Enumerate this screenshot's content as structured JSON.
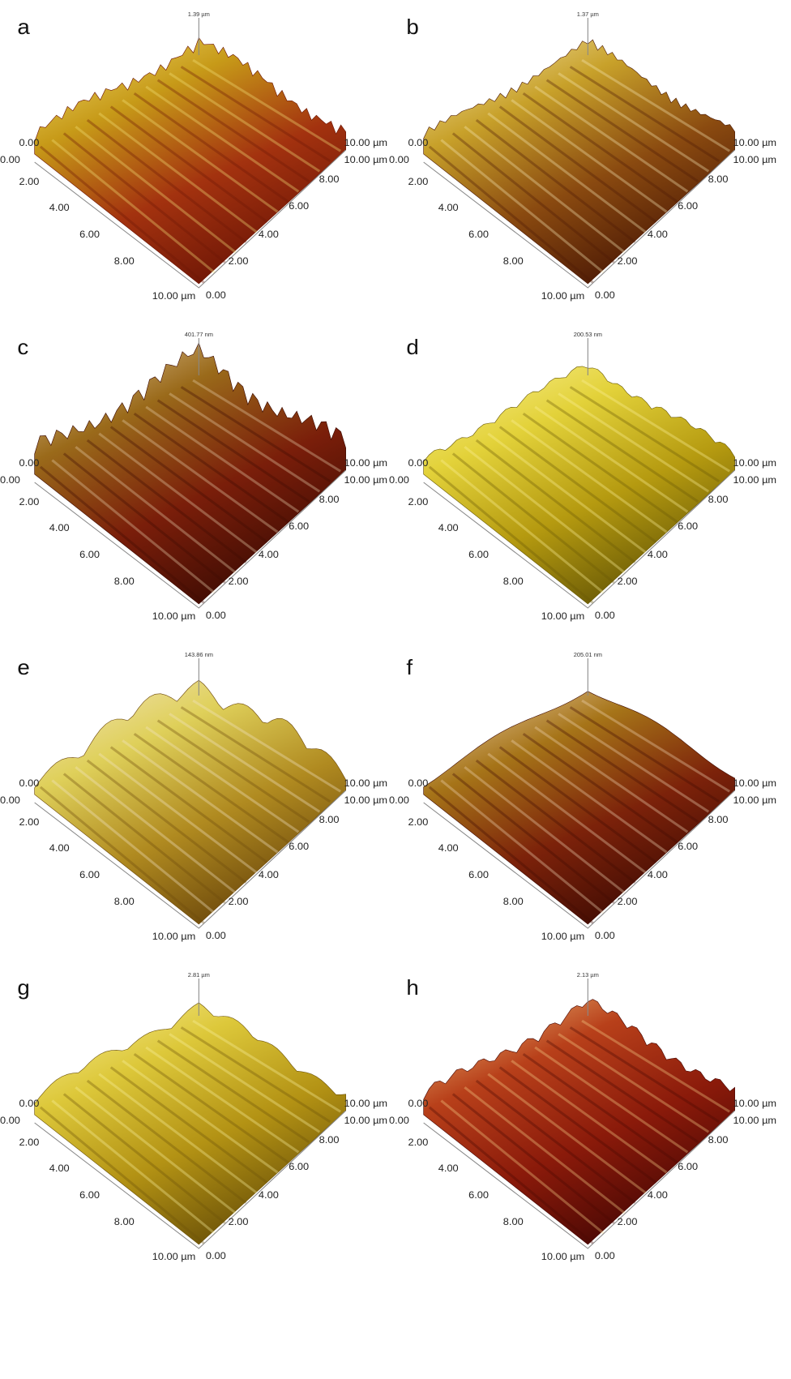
{
  "panels": [
    {
      "label": "a",
      "z_max": "1.39 µm",
      "left_ticks": [
        "0.00",
        "2.00",
        "4.00",
        "6.00",
        "8.00",
        "10.00 µm"
      ],
      "right_ticks": [
        "0.00",
        "2.00",
        "4.00",
        "6.00",
        "8.00",
        "10.00 µm"
      ],
      "corner_left": "0.00",
      "corner_right": "10.00 µm"
    },
    {
      "label": "b",
      "z_max": "1.37 µm",
      "left_ticks": [
        "0.00",
        "2.00",
        "4.00",
        "6.00",
        "8.00",
        "10.00 µm"
      ],
      "right_ticks": [
        "0.00",
        "2.00",
        "4.00",
        "6.00",
        "8.00",
        "10.00 µm"
      ],
      "corner_left": "0.00",
      "corner_right": "10.00 µm"
    },
    {
      "label": "c",
      "z_max": "401.77 nm",
      "left_ticks": [
        "0.00",
        "2.00",
        "4.00",
        "6.00",
        "8.00",
        "10.00 µm"
      ],
      "right_ticks": [
        "0.00",
        "2.00",
        "4.00",
        "6.00",
        "8.00",
        "10.00 µm"
      ],
      "corner_left": "0.00",
      "corner_right": "10.00 µm"
    },
    {
      "label": "d",
      "z_max": "200.53 nm",
      "left_ticks": [
        "0.00",
        "2.00",
        "4.00",
        "6.00",
        "8.00",
        "10.00 µm"
      ],
      "right_ticks": [
        "0.00",
        "2.00",
        "4.00",
        "6.00",
        "8.00",
        "10.00 µm"
      ],
      "corner_left": "0.00",
      "corner_right": "10.00 µm"
    },
    {
      "label": "e",
      "z_max": "143.86 nm",
      "left_ticks": [
        "0.00",
        "2.00",
        "4.00",
        "6.00",
        "8.00",
        "10.00 µm"
      ],
      "right_ticks": [
        "0.00",
        "2.00",
        "4.00",
        "6.00",
        "8.00",
        "10.00 µm"
      ],
      "corner_left": "0.00",
      "corner_right": "10.00 µm"
    },
    {
      "label": "f",
      "z_max": "205.01 nm",
      "left_ticks": [
        "0.00",
        "2.00",
        "4.00",
        "6.00",
        "8.00",
        "10.00 µm"
      ],
      "right_ticks": [
        "0.00",
        "2.00",
        "4.00",
        "6.00",
        "8.00",
        "10.00 µm"
      ],
      "corner_left": "0.00",
      "corner_right": "10.00 µm"
    },
    {
      "label": "g",
      "z_max": "2.81 µm",
      "left_ticks": [
        "0.00",
        "2.00",
        "4.00",
        "6.00",
        "8.00",
        "10.00 µm"
      ],
      "right_ticks": [
        "0.00",
        "2.00",
        "4.00",
        "6.00",
        "8.00",
        "10.00 µm"
      ],
      "corner_left": "0.00",
      "corner_right": "10.00 µm"
    },
    {
      "label": "h",
      "z_max": "2.13 µm",
      "left_ticks": [
        "0.00",
        "2.00",
        "4.00",
        "6.00",
        "8.00",
        "10.00 µm"
      ],
      "right_ticks": [
        "0.00",
        "2.00",
        "4.00",
        "6.00",
        "8.00",
        "10.00 µm"
      ],
      "corner_left": "0.00",
      "corner_right": "10.00 µm"
    }
  ]
}
